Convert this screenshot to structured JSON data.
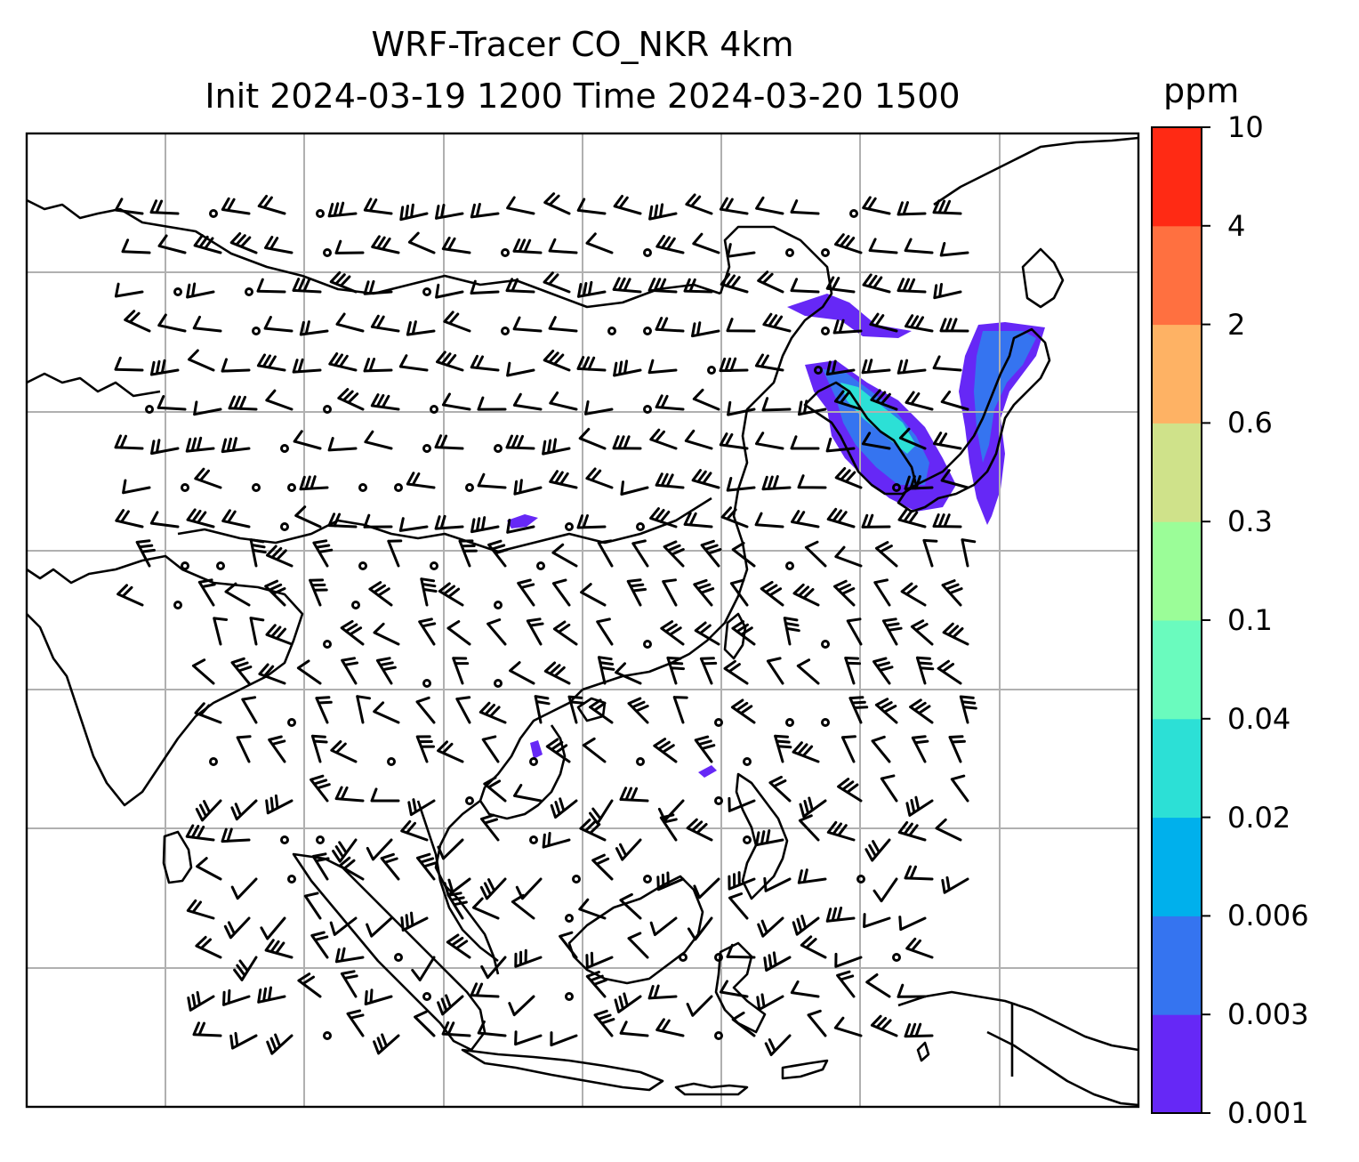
{
  "title": {
    "line1": "WRF-Tracer CO_NKR 4km",
    "line2": "Init 2024-03-19 1200 Time 2024-03-20 1500"
  },
  "colorbar": {
    "unit": "ppm",
    "levels": [
      "0.001",
      "0.003",
      "0.006",
      "0.02",
      "0.04",
      "0.1",
      "0.3",
      "0.6",
      "2",
      "4",
      "10"
    ],
    "colors": [
      "#6628f6",
      "#3574f0",
      "#00b0ec",
      "#2ce0d6",
      "#6afbbe",
      "#9bfd98",
      "#cfe28a",
      "#feb264",
      "#ff7040",
      "#ff2a14"
    ]
  },
  "map": {
    "gridlines": true,
    "gridline_color": "#b0b0b0",
    "coastline_color": "#000000",
    "barb_color": "#000000"
  }
}
